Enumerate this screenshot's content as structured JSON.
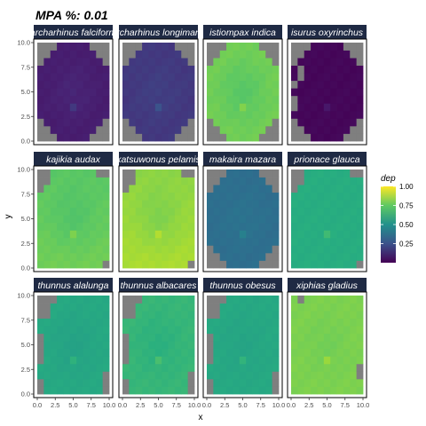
{
  "chart_data": {
    "type": "heatmap",
    "title": "MPA %: 0.01",
    "xlabel": "x",
    "ylabel": "y",
    "x_ticks": [
      "0.0",
      "2.5",
      "5.0",
      "7.5",
      "10.0"
    ],
    "y_ticks": [
      "0.0",
      "2.5",
      "5.0",
      "7.5",
      "10.0"
    ],
    "xlim": [
      0,
      10
    ],
    "ylim": [
      0,
      10
    ],
    "grid": false,
    "legend": {
      "title": "dep",
      "labels": [
        "0.25",
        "0.50",
        "0.75",
        "1.00"
      ],
      "range": [
        0,
        1
      ],
      "placement": "right",
      "colormap": "viridis"
    },
    "na_color": "#7f7f7f",
    "facets": [
      {
        "label": "archarhinus falciform",
        "base": 0.1,
        "cross": 0.03,
        "grad": 0.0,
        "mask": "circle"
      },
      {
        "label": "archarhinus longimanu",
        "base": 0.18,
        "cross": 0.02,
        "grad": 0.0,
        "mask": "circle"
      },
      {
        "label": "istiompax indica",
        "base": 0.78,
        "cross": -0.05,
        "grad": 0.0,
        "mask": "circle"
      },
      {
        "label": "isurus oxyrinchus",
        "base": 0.02,
        "cross": 0.0,
        "grad": 0.0,
        "mask": "jagged"
      },
      {
        "label": "kajikia audax",
        "base": 0.76,
        "cross": -0.04,
        "grad": 0.04,
        "mask": "corner"
      },
      {
        "label": "katsuwonus pelamis",
        "base": 0.85,
        "cross": -0.05,
        "grad": 0.05,
        "mask": "corner"
      },
      {
        "label": "makaira mazara",
        "base": 0.36,
        "cross": 0.02,
        "grad": 0.0,
        "mask": "circle"
      },
      {
        "label": "prionace glauca",
        "base": 0.62,
        "cross": 0.0,
        "grad": 0.0,
        "mask": "corner"
      },
      {
        "label": "thunnus alalunga",
        "base": 0.6,
        "cross": -0.03,
        "grad": 0.0,
        "mask": "left"
      },
      {
        "label": "thunnus albacares",
        "base": 0.66,
        "cross": -0.03,
        "grad": 0.0,
        "mask": "left"
      },
      {
        "label": "thunnus obesus",
        "base": 0.6,
        "cross": -0.02,
        "grad": 0.0,
        "mask": "left"
      },
      {
        "label": "xiphias gladius",
        "base": 0.8,
        "cross": -0.02,
        "grad": 0.0,
        "mask": "xiphias"
      }
    ]
  }
}
